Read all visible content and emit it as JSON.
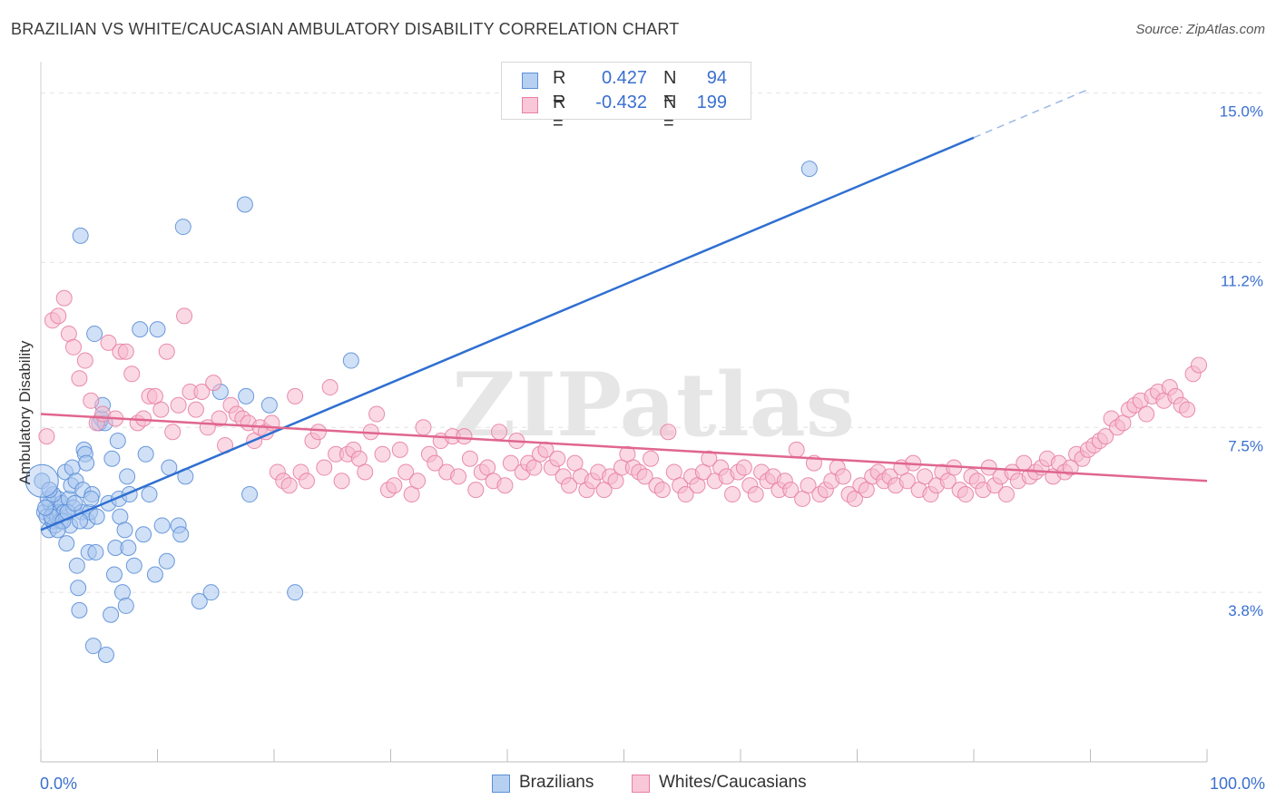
{
  "chart_data": {
    "type": "scatter",
    "title": "BRAZILIAN VS WHITE/CAUCASIAN AMBULATORY DISABILITY CORRELATION CHART",
    "source": "Source: ZipAtlas.com",
    "xlabel": "",
    "ylabel": "Ambulatory Disability",
    "xlim": [
      0,
      100
    ],
    "ylim": [
      0,
      15.5
    ],
    "x_tick_labels": [
      "0.0%",
      "100.0%"
    ],
    "y_ticks": [
      3.8,
      7.5,
      11.2,
      15.0
    ],
    "y_tick_labels": [
      "3.8%",
      "7.5%",
      "11.2%",
      "15.0%"
    ],
    "watermark": "ZIPatlas",
    "legend": {
      "rows": [
        {
          "r_label": "R =",
          "r_value": "0.427",
          "n_label": "N =",
          "n_value": "94"
        },
        {
          "r_label": "R =",
          "r_value": "-0.432",
          "n_label": "N =",
          "n_value": "199"
        }
      ]
    },
    "series": [
      {
        "name": "Brazilians",
        "color": "#5b8fd8",
        "fill": "#a9c6ef",
        "trend": {
          "x0": 0,
          "y0": 5.2,
          "x1": 80,
          "y1": 14.0,
          "dash_to_x": 90,
          "dash_to_y": 15.1
        },
        "points": [
          [
            0.1,
            6.3
          ],
          [
            0.3,
            5.6
          ],
          [
            0.5,
            5.5
          ],
          [
            0.7,
            5.2
          ],
          [
            0.8,
            5.8
          ],
          [
            1.0,
            5.4
          ],
          [
            1.1,
            5.6
          ],
          [
            1.2,
            5.3
          ],
          [
            1.3,
            5.7
          ],
          [
            1.4,
            5.5
          ],
          [
            1.5,
            5.9
          ],
          [
            1.6,
            5.6
          ],
          [
            1.7,
            5.4
          ],
          [
            1.8,
            5.8
          ],
          [
            2.0,
            5.6
          ],
          [
            2.1,
            6.5
          ],
          [
            2.2,
            4.9
          ],
          [
            2.4,
            5.9
          ],
          [
            2.5,
            5.3
          ],
          [
            2.6,
            6.2
          ],
          [
            2.7,
            6.6
          ],
          [
            2.8,
            5.7
          ],
          [
            3.0,
            6.3
          ],
          [
            3.1,
            4.4
          ],
          [
            3.2,
            3.9
          ],
          [
            3.3,
            3.4
          ],
          [
            3.4,
            11.8
          ],
          [
            3.5,
            5.6
          ],
          [
            3.6,
            6.1
          ],
          [
            3.7,
            7.0
          ],
          [
            3.8,
            6.9
          ],
          [
            3.9,
            6.7
          ],
          [
            4.0,
            5.4
          ],
          [
            4.1,
            4.7
          ],
          [
            4.2,
            5.6
          ],
          [
            4.4,
            6.0
          ],
          [
            4.5,
            2.6
          ],
          [
            4.6,
            9.6
          ],
          [
            4.7,
            4.7
          ],
          [
            4.8,
            5.5
          ],
          [
            5.0,
            7.6
          ],
          [
            5.2,
            7.7
          ],
          [
            5.3,
            8.0
          ],
          [
            5.5,
            7.6
          ],
          [
            5.6,
            2.4
          ],
          [
            5.8,
            5.8
          ],
          [
            6.0,
            3.3
          ],
          [
            6.1,
            6.8
          ],
          [
            6.3,
            4.2
          ],
          [
            6.4,
            4.8
          ],
          [
            6.6,
            7.2
          ],
          [
            6.7,
            5.9
          ],
          [
            6.8,
            5.5
          ],
          [
            7.0,
            3.8
          ],
          [
            7.2,
            5.2
          ],
          [
            7.3,
            3.5
          ],
          [
            7.4,
            6.4
          ],
          [
            7.5,
            4.8
          ],
          [
            7.6,
            6.0
          ],
          [
            8.0,
            4.4
          ],
          [
            8.5,
            9.7
          ],
          [
            8.8,
            5.1
          ],
          [
            9.0,
            6.9
          ],
          [
            9.3,
            6.0
          ],
          [
            9.8,
            4.2
          ],
          [
            10.0,
            9.7
          ],
          [
            10.4,
            5.3
          ],
          [
            10.8,
            4.5
          ],
          [
            11.0,
            6.6
          ],
          [
            11.8,
            5.3
          ],
          [
            12.0,
            5.1
          ],
          [
            12.2,
            12.0
          ],
          [
            12.4,
            6.4
          ],
          [
            13.6,
            3.6
          ],
          [
            14.6,
            3.8
          ],
          [
            15.4,
            8.3
          ],
          [
            17.5,
            12.5
          ],
          [
            17.6,
            8.2
          ],
          [
            17.9,
            6.0
          ],
          [
            19.6,
            8.0
          ],
          [
            21.8,
            3.8
          ],
          [
            26.6,
            9.0
          ],
          [
            65.9,
            13.3
          ],
          [
            0.9,
            5.5
          ],
          [
            1.9,
            5.4
          ],
          [
            2.3,
            5.6
          ],
          [
            0.6,
            5.9
          ],
          [
            1.05,
            6.0
          ],
          [
            0.4,
            5.7
          ],
          [
            2.9,
            5.8
          ],
          [
            3.35,
            5.4
          ],
          [
            4.3,
            5.9
          ],
          [
            1.45,
            5.2
          ],
          [
            0.75,
            6.1
          ]
        ]
      },
      {
        "name": "Whites/Caucasians",
        "color": "#e880a4",
        "fill": "#f5b9cd",
        "trend": {
          "x0": 0,
          "y0": 7.8,
          "x1": 100,
          "y1": 6.3
        },
        "points": [
          [
            0.5,
            7.3
          ],
          [
            1.0,
            9.9
          ],
          [
            1.5,
            10.0
          ],
          [
            2.0,
            10.4
          ],
          [
            2.4,
            9.6
          ],
          [
            2.8,
            9.3
          ],
          [
            3.3,
            8.6
          ],
          [
            3.8,
            9.0
          ],
          [
            4.3,
            8.1
          ],
          [
            4.8,
            7.6
          ],
          [
            5.3,
            7.8
          ],
          [
            5.8,
            9.4
          ],
          [
            6.4,
            7.7
          ],
          [
            6.8,
            9.2
          ],
          [
            7.3,
            9.2
          ],
          [
            7.8,
            8.7
          ],
          [
            8.3,
            7.6
          ],
          [
            8.8,
            7.7
          ],
          [
            9.3,
            8.2
          ],
          [
            9.8,
            8.2
          ],
          [
            10.3,
            7.9
          ],
          [
            10.8,
            9.2
          ],
          [
            11.3,
            7.4
          ],
          [
            11.8,
            8.0
          ],
          [
            12.3,
            10.0
          ],
          [
            12.8,
            8.3
          ],
          [
            13.3,
            7.9
          ],
          [
            13.8,
            8.3
          ],
          [
            14.3,
            7.5
          ],
          [
            14.8,
            8.5
          ],
          [
            15.3,
            7.7
          ],
          [
            15.8,
            7.1
          ],
          [
            16.3,
            8.0
          ],
          [
            16.8,
            7.8
          ],
          [
            17.3,
            7.7
          ],
          [
            17.8,
            7.6
          ],
          [
            18.3,
            7.2
          ],
          [
            18.8,
            7.5
          ],
          [
            19.3,
            7.4
          ],
          [
            19.8,
            7.6
          ],
          [
            20.3,
            6.5
          ],
          [
            20.8,
            6.3
          ],
          [
            21.3,
            6.2
          ],
          [
            21.8,
            8.2
          ],
          [
            22.3,
            6.5
          ],
          [
            22.8,
            6.3
          ],
          [
            23.3,
            7.2
          ],
          [
            23.8,
            7.4
          ],
          [
            24.3,
            6.6
          ],
          [
            24.8,
            8.4
          ],
          [
            25.3,
            6.9
          ],
          [
            25.8,
            6.3
          ],
          [
            26.3,
            6.9
          ],
          [
            26.8,
            7.0
          ],
          [
            27.3,
            6.8
          ],
          [
            27.8,
            6.5
          ],
          [
            28.3,
            7.4
          ],
          [
            28.8,
            7.8
          ],
          [
            29.3,
            6.9
          ],
          [
            29.8,
            6.1
          ],
          [
            30.3,
            6.2
          ],
          [
            30.8,
            7.0
          ],
          [
            31.3,
            6.5
          ],
          [
            31.8,
            6.0
          ],
          [
            32.3,
            6.3
          ],
          [
            32.8,
            7.5
          ],
          [
            33.3,
            6.9
          ],
          [
            33.8,
            6.7
          ],
          [
            34.3,
            7.2
          ],
          [
            34.8,
            6.5
          ],
          [
            35.3,
            7.3
          ],
          [
            35.8,
            6.4
          ],
          [
            36.3,
            7.3
          ],
          [
            36.8,
            6.8
          ],
          [
            37.3,
            6.1
          ],
          [
            37.8,
            6.5
          ],
          [
            38.3,
            6.6
          ],
          [
            38.8,
            6.3
          ],
          [
            39.3,
            7.4
          ],
          [
            39.8,
            6.2
          ],
          [
            40.3,
            6.7
          ],
          [
            40.8,
            7.2
          ],
          [
            41.3,
            6.5
          ],
          [
            41.8,
            6.7
          ],
          [
            42.3,
            6.6
          ],
          [
            42.8,
            6.9
          ],
          [
            43.3,
            7.0
          ],
          [
            43.8,
            6.6
          ],
          [
            44.3,
            6.8
          ],
          [
            44.8,
            6.4
          ],
          [
            45.3,
            6.2
          ],
          [
            45.8,
            6.7
          ],
          [
            46.3,
            6.4
          ],
          [
            46.8,
            6.1
          ],
          [
            47.3,
            6.3
          ],
          [
            47.8,
            6.5
          ],
          [
            48.3,
            6.1
          ],
          [
            48.8,
            6.4
          ],
          [
            49.3,
            6.3
          ],
          [
            49.8,
            6.6
          ],
          [
            50.3,
            6.9
          ],
          [
            50.8,
            6.6
          ],
          [
            51.3,
            6.5
          ],
          [
            51.8,
            6.4
          ],
          [
            52.3,
            6.8
          ],
          [
            52.8,
            6.2
          ],
          [
            53.3,
            6.1
          ],
          [
            53.8,
            7.4
          ],
          [
            54.3,
            6.5
          ],
          [
            54.8,
            6.2
          ],
          [
            55.3,
            6.0
          ],
          [
            55.8,
            6.4
          ],
          [
            56.3,
            6.2
          ],
          [
            56.8,
            6.5
          ],
          [
            57.3,
            6.8
          ],
          [
            57.8,
            6.3
          ],
          [
            58.3,
            6.6
          ],
          [
            58.8,
            6.4
          ],
          [
            59.3,
            6.0
          ],
          [
            59.8,
            6.5
          ],
          [
            60.3,
            6.6
          ],
          [
            60.8,
            6.2
          ],
          [
            61.3,
            6.0
          ],
          [
            61.8,
            6.5
          ],
          [
            62.3,
            6.3
          ],
          [
            62.8,
            6.4
          ],
          [
            63.3,
            6.1
          ],
          [
            63.8,
            6.3
          ],
          [
            64.3,
            6.1
          ],
          [
            64.8,
            7.0
          ],
          [
            65.3,
            5.9
          ],
          [
            65.8,
            6.2
          ],
          [
            66.3,
            6.7
          ],
          [
            66.8,
            6.0
          ],
          [
            67.3,
            6.1
          ],
          [
            67.8,
            6.3
          ],
          [
            68.3,
            6.6
          ],
          [
            68.8,
            6.4
          ],
          [
            69.3,
            6.0
          ],
          [
            69.8,
            5.9
          ],
          [
            70.3,
            6.2
          ],
          [
            70.8,
            6.1
          ],
          [
            71.3,
            6.4
          ],
          [
            71.8,
            6.5
          ],
          [
            72.3,
            6.3
          ],
          [
            72.8,
            6.4
          ],
          [
            73.3,
            6.2
          ],
          [
            73.8,
            6.6
          ],
          [
            74.3,
            6.3
          ],
          [
            74.8,
            6.7
          ],
          [
            75.3,
            6.1
          ],
          [
            75.8,
            6.4
          ],
          [
            76.3,
            6.0
          ],
          [
            76.8,
            6.2
          ],
          [
            77.3,
            6.5
          ],
          [
            77.8,
            6.3
          ],
          [
            78.3,
            6.6
          ],
          [
            78.8,
            6.1
          ],
          [
            79.3,
            6.0
          ],
          [
            79.8,
            6.4
          ],
          [
            80.3,
            6.3
          ],
          [
            80.8,
            6.1
          ],
          [
            81.3,
            6.6
          ],
          [
            81.8,
            6.2
          ],
          [
            82.3,
            6.4
          ],
          [
            82.8,
            6.0
          ],
          [
            83.3,
            6.5
          ],
          [
            83.8,
            6.3
          ],
          [
            84.3,
            6.7
          ],
          [
            84.8,
            6.4
          ],
          [
            85.3,
            6.5
          ],
          [
            85.8,
            6.6
          ],
          [
            86.3,
            6.8
          ],
          [
            86.8,
            6.4
          ],
          [
            87.3,
            6.7
          ],
          [
            87.8,
            6.5
          ],
          [
            88.3,
            6.6
          ],
          [
            88.8,
            6.9
          ],
          [
            89.3,
            6.8
          ],
          [
            89.8,
            7.0
          ],
          [
            90.3,
            7.1
          ],
          [
            90.8,
            7.2
          ],
          [
            91.3,
            7.3
          ],
          [
            91.8,
            7.7
          ],
          [
            92.3,
            7.5
          ],
          [
            92.8,
            7.6
          ],
          [
            93.3,
            7.9
          ],
          [
            93.8,
            8.0
          ],
          [
            94.3,
            8.1
          ],
          [
            94.8,
            7.8
          ],
          [
            95.3,
            8.2
          ],
          [
            95.8,
            8.3
          ],
          [
            96.3,
            8.1
          ],
          [
            96.8,
            8.4
          ],
          [
            97.3,
            8.2
          ],
          [
            97.8,
            8.0
          ],
          [
            98.3,
            7.9
          ],
          [
            98.8,
            8.7
          ],
          [
            99.3,
            8.9
          ]
        ]
      }
    ]
  }
}
